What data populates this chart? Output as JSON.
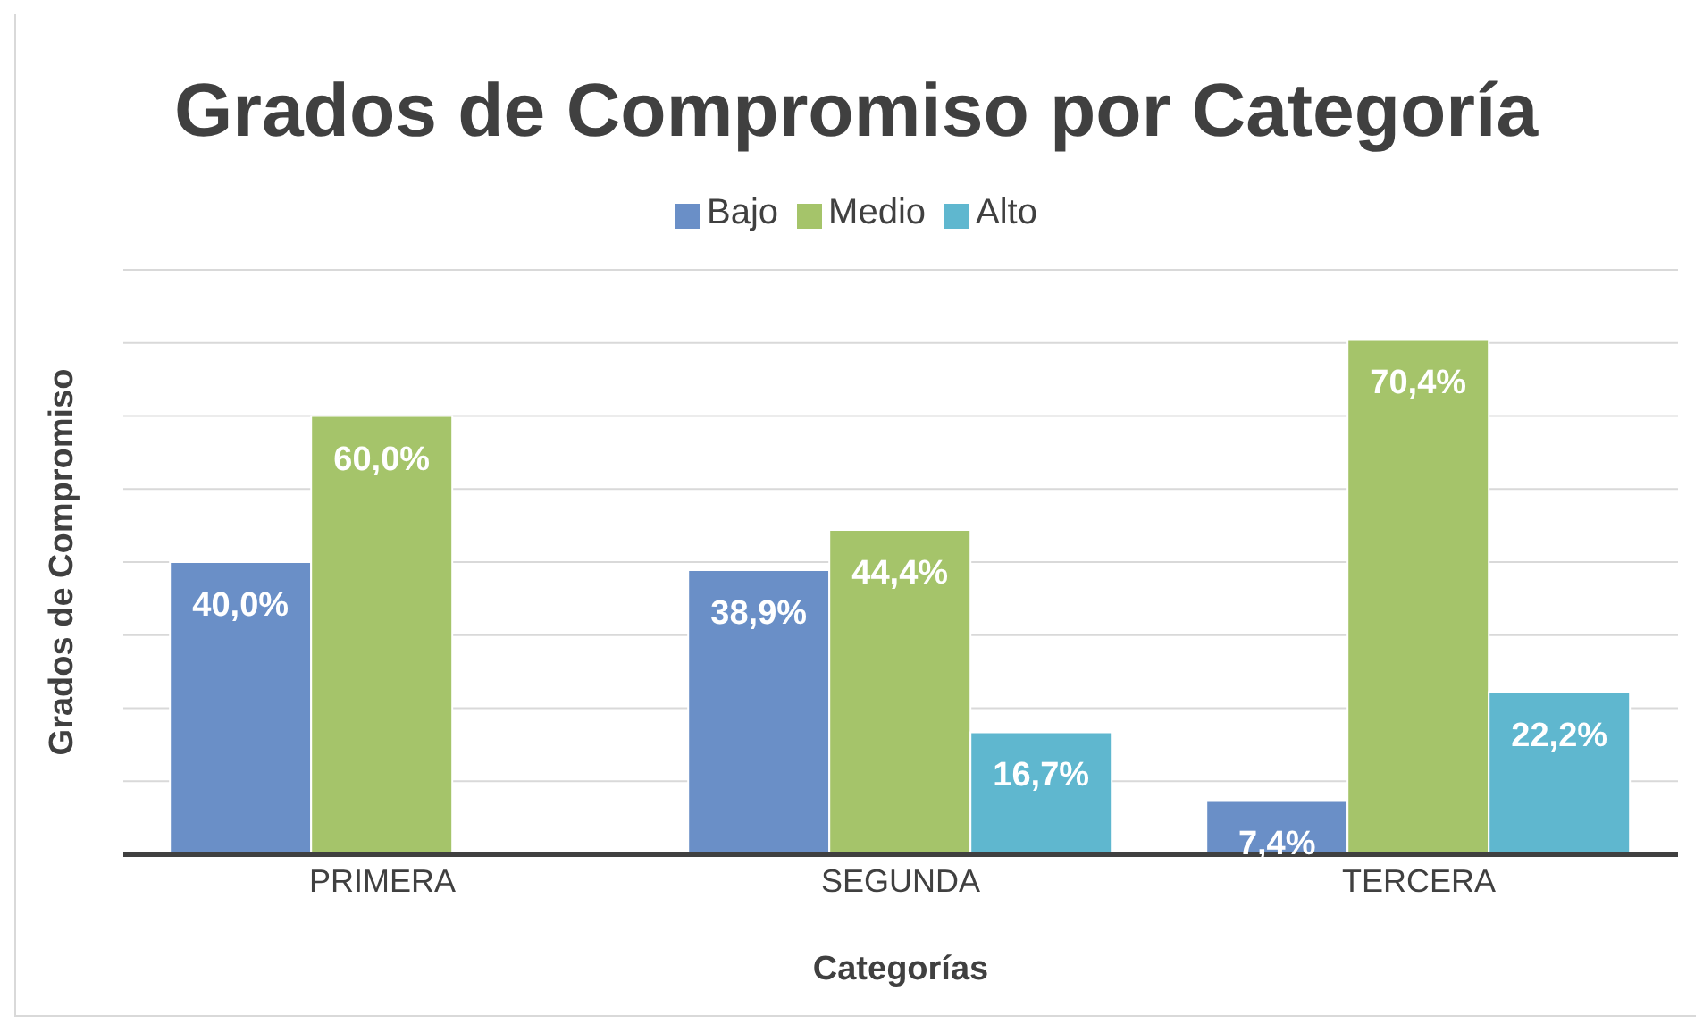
{
  "chart_data": {
    "type": "bar",
    "title": "Grados de Compromiso por Categoría",
    "xlabel": "Categorías",
    "ylabel": "Grados de Compromiso",
    "categories": [
      "PRIMERA",
      "SEGUNDA",
      "TERCERA"
    ],
    "series": [
      {
        "name": "Bajo",
        "color": "#6a8fc7",
        "values": [
          40.0,
          38.9,
          7.4
        ],
        "value_labels": [
          "40,0%",
          "38,9%",
          "7,4%"
        ]
      },
      {
        "name": "Medio",
        "color": "#a5c46a",
        "values": [
          60.0,
          44.4,
          70.4
        ],
        "value_labels": [
          "60,0%",
          "44,4%",
          "70,4%"
        ]
      },
      {
        "name": "Alto",
        "color": "#5fb7cf",
        "values": [
          null,
          16.7,
          22.2
        ],
        "value_labels": [
          null,
          "16,7%",
          "22,2%"
        ]
      }
    ],
    "ylim": [
      0,
      80
    ],
    "yticks": [
      {
        "value": 0,
        "label": null
      },
      {
        "value": 10,
        "label": null
      },
      {
        "value": 20,
        "label": null
      },
      {
        "value": 30,
        "label": null
      },
      {
        "value": 40,
        "label": null
      },
      {
        "value": 50,
        "label": null
      },
      {
        "value": 60,
        "label": null
      },
      {
        "value": 70,
        "label": null
      },
      {
        "value": 80,
        "label": null
      }
    ],
    "tick_labels": "x",
    "grid": "y",
    "legend": "top"
  }
}
